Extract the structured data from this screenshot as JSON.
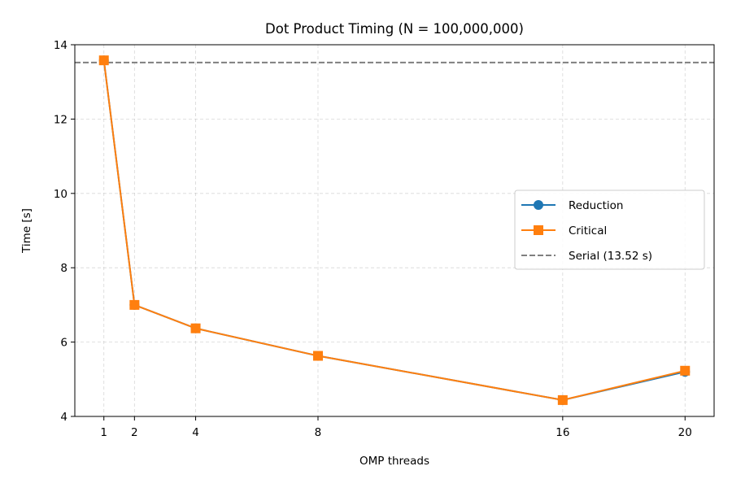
{
  "chart_data": {
    "type": "line",
    "title": "Dot Product Timing (N = 100,000,000)",
    "xlabel": "OMP threads",
    "ylabel": "Time [s]",
    "x": [
      1,
      2,
      4,
      8,
      16,
      20
    ],
    "xticks": [
      1,
      2,
      4,
      8,
      16,
      20
    ],
    "xtick_labels": [
      "1",
      "2",
      "4",
      "8",
      "16",
      "20"
    ],
    "yticks": [
      4,
      6,
      8,
      10,
      12,
      14
    ],
    "ytick_labels": [
      "4",
      "6",
      "8",
      "10",
      "12",
      "14"
    ],
    "xlim": [
      0.05,
      20.95
    ],
    "ylim": [
      4,
      14
    ],
    "grid": true,
    "legend_position": "center-right",
    "series": [
      {
        "name": "Reduction",
        "values": [
          13.58,
          7.0,
          6.37,
          5.63,
          4.44,
          5.2
        ],
        "color": "#1f77b4",
        "marker": "circle",
        "style": "solid"
      },
      {
        "name": "Critical",
        "values": [
          13.58,
          7.0,
          6.37,
          5.63,
          4.44,
          5.23
        ],
        "color": "#ff7f0e",
        "marker": "square",
        "style": "solid"
      }
    ],
    "reference_lines": [
      {
        "name": "Serial (13.52 s)",
        "value": 13.52,
        "color": "#7f7f7f",
        "style": "dashed"
      }
    ]
  }
}
